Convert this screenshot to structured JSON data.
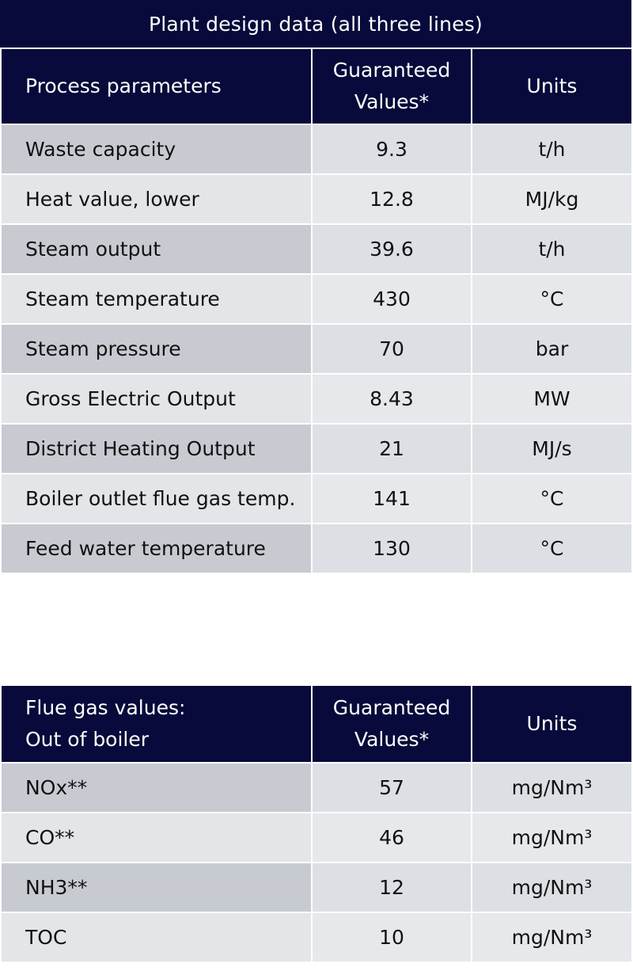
{
  "title": "Plant design data (all three lines)",
  "process_table": {
    "headers": {
      "param": "Process parameters",
      "guaranteed_line1": "Guaranteed",
      "guaranteed_line2": "Values*",
      "units": "Units"
    },
    "rows": [
      {
        "param": "Waste capacity",
        "value": "9.3",
        "unit": "t/h"
      },
      {
        "param": "Heat value, lower",
        "value": "12.8",
        "unit": "MJ/kg"
      },
      {
        "param": "Steam output",
        "value": "39.6",
        "unit": "t/h"
      },
      {
        "param": "Steam temperature",
        "value": "430",
        "unit": "°C"
      },
      {
        "param": "Steam pressure",
        "value": "70",
        "unit": "bar"
      },
      {
        "param": "Gross Electric Output",
        "value": "8.43",
        "unit": "MW"
      },
      {
        "param": "District Heating Output",
        "value": "21",
        "unit": "MJ/s"
      },
      {
        "param": "Boiler outlet flue gas temp.",
        "value": "141",
        "unit": "°C"
      },
      {
        "param": "Feed water temperature",
        "value": "130",
        "unit": "°C"
      }
    ]
  },
  "flue_table": {
    "headers": {
      "param_line1": "Flue gas values:",
      "param_line2": "Out of boiler",
      "guaranteed_line1": "Guaranteed",
      "guaranteed_line2": "Values*",
      "units": "Units"
    },
    "rows": [
      {
        "param": "NOx**",
        "value": "57",
        "unit": "mg/Nm³"
      },
      {
        "param": "CO**",
        "value": "46",
        "unit": "mg/Nm³"
      },
      {
        "param": "NH3**",
        "value": "12",
        "unit": "mg/Nm³"
      },
      {
        "param": "TOC",
        "value": "10",
        "unit": "mg/Nm³"
      }
    ]
  }
}
